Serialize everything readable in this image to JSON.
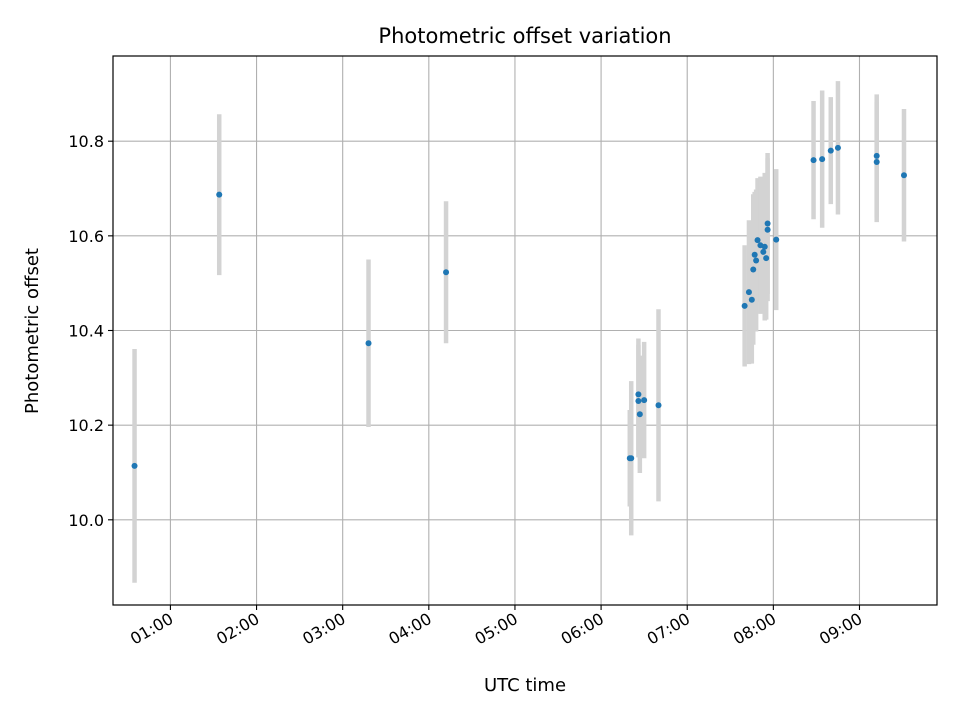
{
  "chart_data": {
    "type": "scatter",
    "title": "Photometric offset variation",
    "xlabel": "UTC time",
    "ylabel": "Photometric offset",
    "x_unit": "hours UTC",
    "xlim": [
      "00:20",
      "09:54"
    ],
    "ylim": [
      9.82,
      10.98
    ],
    "x_ticks": [
      "01:00",
      "02:00",
      "03:00",
      "04:00",
      "05:00",
      "06:00",
      "07:00",
      "08:00",
      "09:00"
    ],
    "y_ticks": [
      "10.0",
      "10.2",
      "10.4",
      "10.6",
      "10.8"
    ],
    "grid": true,
    "marker_color": "#1f77b4",
    "errorbar_color": "#d3d3d3",
    "points": [
      {
        "t": "00:35",
        "y": 10.114,
        "err": 0.247
      },
      {
        "t": "01:34",
        "y": 10.687,
        "err": 0.17
      },
      {
        "t": "03:18",
        "y": 10.373,
        "err": 0.177
      },
      {
        "t": "04:12",
        "y": 10.523,
        "err": 0.15
      },
      {
        "t": "06:20",
        "y": 10.13,
        "err": 0.102
      },
      {
        "t": "06:21",
        "y": 10.13,
        "err": 0.163
      },
      {
        "t": "06:26",
        "y": 10.265,
        "err": 0.118
      },
      {
        "t": "06:26",
        "y": 10.251,
        "err": 0.119
      },
      {
        "t": "06:27",
        "y": 10.223,
        "err": 0.124
      },
      {
        "t": "06:30",
        "y": 10.253,
        "err": 0.123
      },
      {
        "t": "06:40",
        "y": 10.242,
        "err": 0.203
      },
      {
        "t": "07:40",
        "y": 10.452,
        "err": 0.128
      },
      {
        "t": "07:43",
        "y": 10.481,
        "err": 0.152
      },
      {
        "t": "07:45",
        "y": 10.465,
        "err": 0.135
      },
      {
        "t": "07:46",
        "y": 10.529,
        "err": 0.159
      },
      {
        "t": "07:47",
        "y": 10.56,
        "err": 0.133
      },
      {
        "t": "07:48",
        "y": 10.548,
        "err": 0.15
      },
      {
        "t": "07:49",
        "y": 10.591,
        "err": 0.131
      },
      {
        "t": "07:51",
        "y": 10.58,
        "err": 0.145
      },
      {
        "t": "07:53",
        "y": 10.566,
        "err": 0.127
      },
      {
        "t": "07:54",
        "y": 10.577,
        "err": 0.156
      },
      {
        "t": "07:55",
        "y": 10.553,
        "err": 0.13
      },
      {
        "t": "07:56",
        "y": 10.613,
        "err": 0.151
      },
      {
        "t": "07:56",
        "y": 10.626,
        "err": 0.149
      },
      {
        "t": "08:02",
        "y": 10.592,
        "err": 0.149
      },
      {
        "t": "08:28",
        "y": 10.76,
        "err": 0.125
      },
      {
        "t": "08:34",
        "y": 10.762,
        "err": 0.145
      },
      {
        "t": "08:40",
        "y": 10.78,
        "err": 0.113
      },
      {
        "t": "08:45",
        "y": 10.786,
        "err": 0.141
      },
      {
        "t": "09:12",
        "y": 10.769,
        "err": 0.13
      },
      {
        "t": "09:12",
        "y": 10.756,
        "err": 0.127
      },
      {
        "t": "09:31",
        "y": 10.728,
        "err": 0.14
      }
    ]
  }
}
